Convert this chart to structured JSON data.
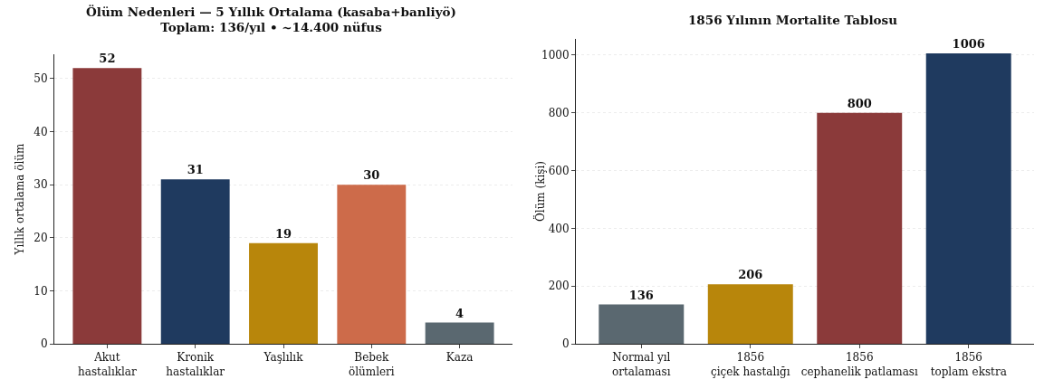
{
  "chart_data": [
    {
      "type": "bar",
      "title": "Ölüm Nedenleri — 5 Yıllık Ortalama (kasaba+banliyö)\nToplam: 136/yıl • ~14.400 nüfus",
      "ylabel": "Yıllık ortalama ölüm",
      "categories": [
        "Akut\nhastalıklar",
        "Kronik\nhastalıklar",
        "Yaşlılık",
        "Bebek\nölümleri",
        "Kaza"
      ],
      "values": [
        52,
        31,
        19,
        30,
        4
      ],
      "colors": [
        "#8b3a3a",
        "#1f3a5f",
        "#b8860b",
        "#cd6b4a",
        "#5a6870"
      ],
      "ylim": [
        0,
        54.6
      ],
      "yticks": [
        0,
        10,
        20,
        30,
        40,
        50
      ],
      "grid": "y",
      "data_labels": true
    },
    {
      "type": "bar",
      "title": "1856 Yılının Mortalite Tablosu",
      "ylabel": "Ölüm (kişi)",
      "categories": [
        "Normal yıl\nortalaması",
        "1856\nçiçek hastalığı",
        "1856\ncephanelik patlaması",
        "1856\ntoplam ekstra"
      ],
      "values": [
        136,
        206,
        800,
        1006
      ],
      "colors": [
        "#5a6870",
        "#b8860b",
        "#8b3a3a",
        "#1f3a5f"
      ],
      "ylim": [
        0,
        1056
      ],
      "yticks": [
        0,
        200,
        400,
        600,
        800,
        1000
      ],
      "grid": "y",
      "data_labels": true
    }
  ]
}
